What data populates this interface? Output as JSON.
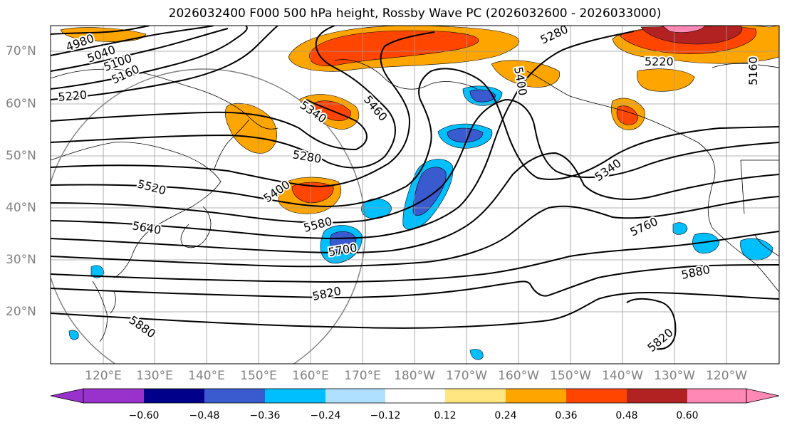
{
  "title": "2026032400 F000 500 hPa height, Rossby Wave PC (2026032600 - 2026033000)",
  "lat_labels": [
    "70°N",
    "60°N",
    "50°N",
    "40°N",
    "30°N",
    "20°N"
  ],
  "lon_labels": [
    "120°E",
    "130°E",
    "140°E",
    "150°E",
    "160°E",
    "170°E",
    "180°W",
    "170°W",
    "160°W",
    "150°W",
    "140°W",
    "130°W",
    "120°W"
  ],
  "contour_labels": [
    "4980",
    "5040",
    "5100",
    "5160",
    "5220",
    "5280",
    "5340",
    "5400",
    "5460",
    "5520",
    "5580",
    "5640",
    "5700",
    "5760",
    "5820",
    "5880"
  ],
  "colorbar": {
    "ticks": [
      "−0.60",
      "−0.48",
      "−0.36",
      "−0.24",
      "−0.12",
      "0.12",
      "0.24",
      "0.36",
      "0.48",
      "0.60"
    ],
    "colors": [
      "#9932cc",
      "#00008b",
      "#3a5bd0",
      "#00bfff",
      "#b0e0ff",
      "#ffffff",
      "#ffe680",
      "#ffa500",
      "#ff4500",
      "#b22222",
      "#ff88b4"
    ]
  }
}
